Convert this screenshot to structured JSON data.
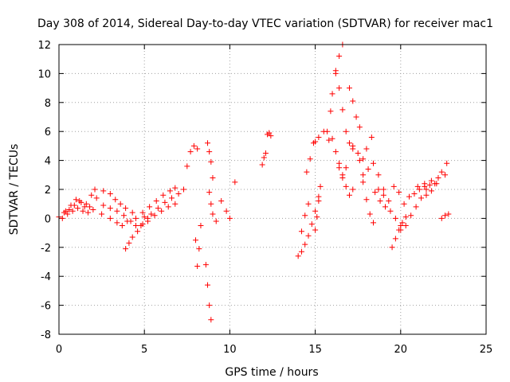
{
  "chart_data": {
    "type": "scatter",
    "title": "Day 308 of 2014, Sidereal Day-to-day VTEC variation (SDTVAR) for receiver mac1",
    "xlabel": "GPS time / hours",
    "ylabel": "SDTVAR / TECUs",
    "xlim": [
      0,
      25
    ],
    "ylim": [
      -8,
      12
    ],
    "xticks": [
      "0",
      "5",
      "10",
      "15",
      "20",
      "25"
    ],
    "yticks": [
      "-8",
      "-6",
      "-4",
      "-2",
      "0",
      "2",
      "4",
      "6",
      "8",
      "10",
      "12"
    ],
    "grid": true,
    "marker": "+",
    "color": "#ff0000",
    "series": [
      {
        "name": "SDTVAR",
        "traces": [
          {
            "x": [
              0.0,
              0.3,
              0.6,
              0.9,
              1.2,
              1.5
            ],
            "y": [
              0.1,
              0.4,
              0.6,
              0.9,
              1.2,
              0.8
            ]
          },
          {
            "x": [
              0.2,
              0.5,
              0.8,
              1.1,
              1.4,
              1.7
            ],
            "y": [
              0.0,
              0.3,
              0.5,
              0.7,
              0.5,
              0.4
            ]
          },
          {
            "x": [
              0.4,
              0.7,
              1.0,
              1.3,
              1.6,
              1.9,
              2.1
            ],
            "y": [
              0.5,
              0.9,
              1.3,
              1.1,
              1.0,
              1.6,
              2.0
            ]
          },
          {
            "x": [
              1.8,
              2.2,
              2.6,
              3.0,
              3.3,
              3.6,
              3.9
            ],
            "y": [
              0.8,
              1.4,
              1.9,
              1.7,
              1.3,
              1.0,
              0.7
            ]
          },
          {
            "x": [
              2.0,
              2.5,
              3.0,
              3.4,
              3.7,
              4.0,
              4.3
            ],
            "y": [
              0.6,
              0.3,
              0.0,
              -0.3,
              -0.5,
              -0.2,
              0.4
            ]
          },
          {
            "x": [
              2.6,
              3.0,
              3.4,
              3.8,
              4.2,
              4.5
            ],
            "y": [
              0.9,
              0.7,
              0.5,
              0.2,
              -0.2,
              -0.5
            ]
          },
          {
            "x": [
              3.9,
              4.1,
              4.3,
              4.6,
              4.9,
              5.2
            ],
            "y": [
              -2.1,
              -1.7,
              -1.3,
              -0.9,
              -0.4,
              0.0
            ]
          },
          {
            "x": [
              4.5,
              4.9,
              5.3,
              5.7,
              6.1,
              6.5,
              6.8
            ],
            "y": [
              0.0,
              0.4,
              0.8,
              1.2,
              1.6,
              1.9,
              2.1
            ]
          },
          {
            "x": [
              4.8,
              5.2,
              5.6,
              6.0,
              6.4,
              6.8
            ],
            "y": [
              -0.5,
              -0.2,
              0.2,
              0.5,
              0.8,
              1.0
            ]
          },
          {
            "x": [
              5.0,
              5.4,
              5.8,
              6.2,
              6.6,
              7.0,
              7.3
            ],
            "y": [
              0.1,
              0.3,
              0.7,
              1.1,
              1.4,
              1.7,
              2.0
            ]
          },
          {
            "x": [
              7.5,
              7.7,
              7.9,
              8.1
            ],
            "y": [
              3.6,
              4.6,
              5.0,
              4.8
            ]
          },
          {
            "x": [
              8.0,
              8.1,
              8.2,
              8.3
            ],
            "y": [
              -1.5,
              -3.3,
              -2.1,
              -0.5
            ]
          },
          {
            "x": [
              8.6,
              8.7,
              8.8,
              8.9
            ],
            "y": [
              -3.2,
              -4.6,
              -6.0,
              -7.0
            ]
          },
          {
            "x": [
              8.7,
              8.8,
              8.9,
              9.0
            ],
            "y": [
              5.2,
              4.6,
              3.9,
              2.8
            ]
          },
          {
            "x": [
              8.8,
              8.9,
              9.0,
              9.2
            ],
            "y": [
              1.8,
              1.0,
              0.3,
              -0.2
            ]
          },
          {
            "x": [
              9.5,
              9.8,
              10.0,
              10.3
            ],
            "y": [
              1.2,
              0.5,
              0.0,
              2.5
            ]
          },
          {
            "x": [
              11.9,
              12.0,
              12.1
            ],
            "y": [
              3.7,
              4.2,
              4.5
            ]
          },
          {
            "x": [
              12.2,
              12.3,
              12.4
            ],
            "y": [
              5.8,
              5.9,
              5.7
            ]
          },
          {
            "x": [
              14.0,
              14.2,
              14.4,
              14.6,
              14.8,
              15.0,
              15.2
            ],
            "y": [
              -2.6,
              -2.3,
              -1.8,
              -1.2,
              -0.4,
              0.5,
              1.5
            ]
          },
          {
            "x": [
              14.2,
              14.4,
              14.6
            ],
            "y": [
              -0.9,
              0.2,
              1.0
            ]
          },
          {
            "x": [
              14.5,
              14.7,
              14.9
            ],
            "y": [
              3.2,
              4.1,
              5.2
            ]
          },
          {
            "x": [
              15.0,
              15.1,
              15.2,
              15.3
            ],
            "y": [
              -0.8,
              0.1,
              1.2,
              2.2
            ]
          },
          {
            "x": [
              15.0,
              15.2,
              15.5,
              15.8
            ],
            "y": [
              5.3,
              5.6,
              6.0,
              5.4
            ]
          },
          {
            "x": [
              15.7,
              15.9,
              16.0,
              16.2,
              16.4,
              16.6
            ],
            "y": [
              6.0,
              7.4,
              8.6,
              10.0,
              11.2,
              12.0
            ]
          },
          {
            "x": [
              16.2,
              16.4,
              16.6,
              16.8,
              17.0,
              17.2
            ],
            "y": [
              10.2,
              9.0,
              7.5,
              6.0,
              5.2,
              4.8
            ]
          },
          {
            "x": [
              16.0,
              16.2,
              16.4,
              16.6,
              16.8
            ],
            "y": [
              5.5,
              4.6,
              3.5,
              2.8,
              3.5
            ]
          },
          {
            "x": [
              16.4,
              16.6,
              16.8,
              17.0,
              17.2
            ],
            "y": [
              3.8,
              3.0,
              2.2,
              1.6,
              2.0
            ]
          },
          {
            "x": [
              17.0,
              17.2,
              17.4,
              17.6
            ],
            "y": [
              9.0,
              8.1,
              7.0,
              6.3
            ]
          },
          {
            "x": [
              17.2,
              17.5,
              17.8,
              18.0,
              18.3
            ],
            "y": [
              5.0,
              4.5,
              4.1,
              4.8,
              5.6
            ]
          },
          {
            "x": [
              17.6,
              17.8,
              18.0,
              18.2,
              18.4
            ],
            "y": [
              4.0,
              2.5,
              1.3,
              0.3,
              -0.3
            ]
          },
          {
            "x": [
              17.8,
              18.1,
              18.4,
              18.7,
              19.0
            ],
            "y": [
              3.0,
              3.4,
              3.8,
              3.0,
              2.0
            ]
          },
          {
            "x": [
              18.5,
              18.8,
              19.1,
              19.4,
              19.7,
              20.0
            ],
            "y": [
              1.8,
              1.2,
              0.8,
              0.5,
              0.0,
              -0.5
            ]
          },
          {
            "x": [
              18.7,
              19.0,
              19.3,
              19.6,
              19.9,
              20.2
            ],
            "y": [
              2.0,
              1.6,
              1.2,
              2.2,
              1.8,
              1.0
            ]
          },
          {
            "x": [
              19.5,
              19.7,
              19.9,
              20.1,
              20.3
            ],
            "y": [
              -2.0,
              -1.4,
              -0.8,
              -0.3,
              0.1
            ]
          },
          {
            "x": [
              20.0,
              20.3,
              20.6,
              20.9,
              21.2,
              21.5
            ],
            "y": [
              -0.8,
              -0.5,
              0.2,
              0.8,
              1.4,
              2.0
            ]
          },
          {
            "x": [
              20.5,
              20.8,
              21.1,
              21.4,
              21.7,
              22.0
            ],
            "y": [
              1.5,
              1.7,
              2.0,
              2.2,
              2.3,
              2.4
            ]
          },
          {
            "x": [
              21.0,
              21.4,
              21.8,
              22.2,
              22.6
            ],
            "y": [
              2.2,
              2.4,
              2.6,
              2.8,
              3.0
            ]
          },
          {
            "x": [
              21.5,
              21.8,
              22.1,
              22.4,
              22.7
            ],
            "y": [
              1.6,
              1.9,
              2.4,
              3.2,
              3.8
            ]
          },
          {
            "x": [
              22.4,
              22.6,
              22.8
            ],
            "y": [
              0.0,
              0.2,
              0.3
            ]
          }
        ]
      }
    ]
  }
}
